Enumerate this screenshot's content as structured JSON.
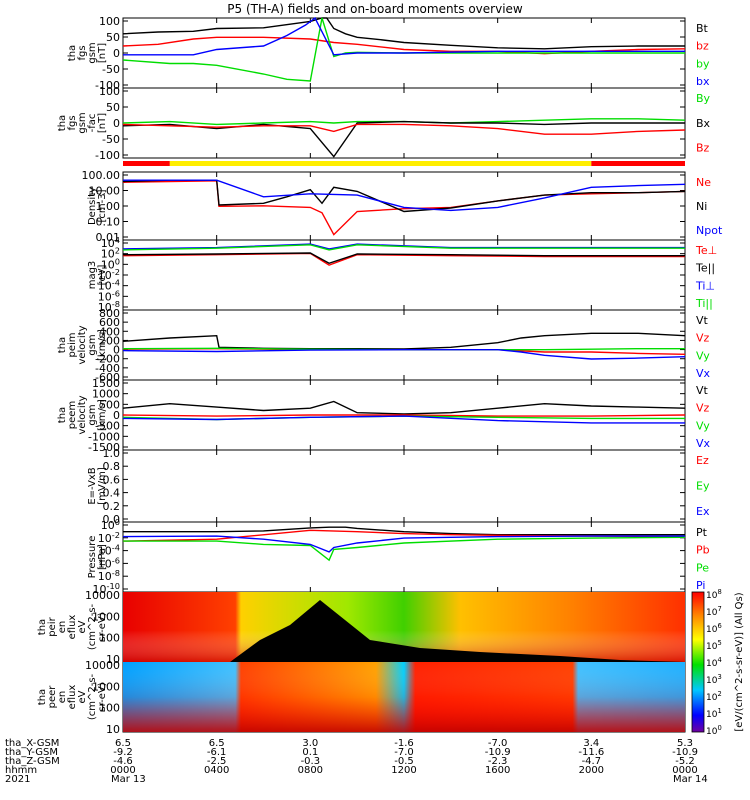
{
  "title": "P5 (TH-A) fields and on-board moments overview",
  "colors": {
    "black": "#000000",
    "red": "#ff0000",
    "green": "#00dd00",
    "blue": "#0000ff",
    "yellow": "#ffee00"
  },
  "chart_data": [
    {
      "type": "line",
      "panel": "fgs",
      "ylabel": [
        "tha",
        "fgs",
        "gsm",
        "[nT]"
      ],
      "ylim": [
        -100,
        100
      ],
      "yticks": [
        "100",
        "50",
        "0",
        "-50",
        "-100"
      ],
      "series": [
        {
          "name": "Bt",
          "color": "black",
          "x": [
            0,
            1.5,
            3,
            4,
            6,
            8,
            8.5,
            8.7,
            9,
            9.5,
            10,
            11,
            12,
            14,
            16,
            18,
            20,
            22,
            24
          ],
          "y": [
            55,
            60,
            62,
            70,
            72,
            90,
            100,
            100,
            70,
            55,
            45,
            38,
            30,
            22,
            15,
            12,
            18,
            20,
            20
          ]
        },
        {
          "name": "bz",
          "color": "red",
          "x": [
            0,
            1.5,
            3,
            4,
            6,
            8,
            9,
            10,
            12,
            14,
            16,
            18,
            20,
            22,
            24
          ],
          "y": [
            20,
            25,
            40,
            45,
            45,
            40,
            30,
            25,
            10,
            5,
            5,
            -2,
            5,
            10,
            12
          ]
        },
        {
          "name": "by",
          "color": "green",
          "x": [
            0,
            2,
            3,
            4,
            6,
            7,
            8,
            8.5,
            9,
            9.5,
            10,
            12,
            16,
            20,
            24
          ],
          "y": [
            -20,
            -30,
            -30,
            -35,
            -60,
            -75,
            -80,
            100,
            -10,
            0,
            2,
            0,
            0,
            0,
            0
          ]
        },
        {
          "name": "bx",
          "color": "blue",
          "x": [
            0,
            2,
            3,
            4,
            6,
            7,
            7.8,
            8.2,
            9,
            10,
            12,
            16,
            20,
            24
          ],
          "y": [
            -5,
            -5,
            -5,
            10,
            20,
            50,
            80,
            100,
            -5,
            0,
            0,
            5,
            5,
            5
          ]
        }
      ]
    },
    {
      "type": "line",
      "panel": "fgs-fac",
      "ylabel": [
        "tha",
        "fgs",
        "gsm",
        "-fac",
        "[nT]"
      ],
      "ylim": [
        -125,
        125
      ],
      "yticks": [
        "100",
        "50",
        "0",
        "-50",
        "-100"
      ],
      "series": [
        {
          "name": "By",
          "color": "green",
          "x": [
            0,
            2,
            4,
            6,
            8,
            9,
            10,
            12,
            14,
            16,
            18,
            20,
            22,
            24
          ],
          "y": [
            0,
            5,
            -5,
            0,
            5,
            0,
            5,
            5,
            0,
            5,
            10,
            15,
            15,
            10
          ]
        },
        {
          "name": "Bx",
          "color": "black",
          "x": [
            0,
            2,
            4,
            6,
            8,
            9,
            10,
            12,
            14,
            16,
            18,
            20,
            22,
            24
          ],
          "y": [
            -10,
            -5,
            -20,
            -5,
            -20,
            -120,
            0,
            5,
            0,
            0,
            -5,
            0,
            0,
            0
          ]
        },
        {
          "name": "Bz",
          "color": "red",
          "x": [
            0,
            2,
            4,
            6,
            8,
            9,
            10,
            12,
            14,
            16,
            18,
            20,
            22,
            24
          ],
          "y": [
            -5,
            -10,
            -15,
            -10,
            -10,
            -30,
            -5,
            -5,
            -10,
            -20,
            -40,
            -40,
            -30,
            -25
          ]
        }
      ]
    },
    {
      "type": "line",
      "panel": "density",
      "yscale": "log",
      "ylabel": [
        "Density",
        "[cm-3]"
      ],
      "ylim": [
        0.004,
        400
      ],
      "yticks": [
        "100.00",
        "10.00",
        "1.00",
        "0.10",
        "0.01"
      ],
      "series": [
        {
          "name": "Ne",
          "color": "red",
          "x": [
            0,
            2,
            4,
            4.1,
            6,
            8,
            8.5,
            9,
            10,
            12,
            14,
            16,
            18,
            20,
            22,
            24
          ],
          "y": [
            70,
            80,
            90,
            1.2,
            1.3,
            1,
            0.4,
            0.01,
            0.5,
            0.8,
            1,
            3,
            8,
            10,
            12,
            15
          ]
        },
        {
          "name": "Ni",
          "color": "black",
          "x": [
            0,
            2,
            4,
            4.1,
            6,
            7,
            8,
            8.5,
            9,
            10,
            12,
            14,
            16,
            18,
            20,
            22,
            24
          ],
          "y": [
            80,
            100,
            100,
            1.5,
            2,
            6,
            20,
            2,
            30,
            15,
            0.5,
            0.9,
            3,
            8,
            12,
            12,
            15
          ]
        },
        {
          "name": "Npot",
          "color": "blue",
          "x": [
            0,
            4,
            6,
            8,
            10,
            12,
            14,
            16,
            18,
            20,
            22,
            24
          ],
          "y": [
            100,
            100,
            6,
            10,
            8,
            1,
            0.6,
            1,
            5,
            30,
            40,
            50
          ]
        }
      ]
    },
    {
      "type": "line",
      "panel": "moments-temperature",
      "yscale": "log",
      "ylabel": [
        "mag3",
        "[eV]"
      ],
      "ylim": [
        1e-08,
        10000
      ],
      "yticks": [
        "10^4",
        "10^2",
        "10^0",
        "10^-2",
        "10^-4",
        "10^-6",
        "10^-8"
      ],
      "series": [
        {
          "name": "Te⊥",
          "color": "red",
          "x": [
            0,
            4,
            8,
            8.8,
            10,
            14,
            18,
            24
          ],
          "y": [
            20,
            30,
            50,
            0.5,
            30,
            20,
            15,
            15
          ]
        },
        {
          "name": "Te||",
          "color": "black",
          "x": [
            0,
            4,
            8,
            8.8,
            10,
            14,
            18,
            24
          ],
          "y": [
            30,
            40,
            60,
            1,
            40,
            30,
            20,
            20
          ]
        },
        {
          "name": "Ti⊥",
          "color": "blue",
          "x": [
            0,
            4,
            8,
            8.8,
            10,
            14,
            18,
            24
          ],
          "y": [
            300,
            500,
            2000,
            300,
            2000,
            500,
            500,
            500
          ]
        },
        {
          "name": "Ti||",
          "color": "green",
          "x": [
            0,
            4,
            8,
            8.8,
            10,
            14,
            18,
            24
          ],
          "y": [
            200,
            400,
            1500,
            200,
            1500,
            400,
            400,
            400
          ]
        }
      ]
    },
    {
      "type": "line",
      "panel": "peim-velocity",
      "ylabel": [
        "tha",
        "peim",
        "velocity",
        "gsm",
        "[km/s]"
      ],
      "ylim": [
        -650,
        850
      ],
      "yticks": [
        "800",
        "600",
        "400",
        "200",
        "0",
        "-200",
        "-400",
        "-600"
      ],
      "series": [
        {
          "name": "Vt",
          "color": "black",
          "x": [
            0,
            2,
            4,
            4.1,
            6,
            8,
            10,
            12,
            14,
            16,
            17,
            18,
            20,
            22,
            24
          ],
          "y": [
            180,
            250,
            300,
            50,
            30,
            20,
            20,
            15,
            50,
            150,
            250,
            300,
            350,
            350,
            300
          ]
        },
        {
          "name": "Vz",
          "color": "red",
          "x": [
            0,
            4,
            8,
            12,
            16,
            18,
            20,
            22,
            24
          ],
          "y": [
            10,
            20,
            0,
            0,
            0,
            -50,
            -50,
            -80,
            -100
          ]
        },
        {
          "name": "Vy",
          "color": "green",
          "x": [
            0,
            4,
            8,
            12,
            16,
            18,
            20,
            22,
            24
          ],
          "y": [
            20,
            30,
            10,
            0,
            0,
            0,
            10,
            20,
            20
          ]
        },
        {
          "name": "Vx",
          "color": "blue",
          "x": [
            0,
            4,
            8,
            12,
            16,
            17,
            18,
            20,
            22,
            24
          ],
          "y": [
            -20,
            -40,
            -10,
            0,
            0,
            -50,
            -120,
            -200,
            -180,
            -150
          ]
        }
      ]
    },
    {
      "type": "line",
      "panel": "peem-velocity",
      "ylabel": [
        "tha",
        "peem",
        "velocity",
        "gsm",
        "[km/s]"
      ],
      "ylim": [
        -1550,
        1550
      ],
      "yticks": [
        "1500",
        "1000",
        "500",
        "0",
        "-500",
        "-1000",
        "-1500"
      ],
      "series": [
        {
          "name": "Vt",
          "color": "black",
          "x": [
            0,
            2,
            4,
            6,
            8,
            9,
            10,
            12,
            14,
            16,
            18,
            20,
            22,
            24
          ],
          "y": [
            300,
            500,
            350,
            200,
            300,
            600,
            100,
            50,
            100,
            300,
            500,
            400,
            350,
            300
          ]
        },
        {
          "name": "Vz",
          "color": "red",
          "x": [
            0,
            4,
            8,
            12,
            16,
            20,
            24
          ],
          "y": [
            0,
            -50,
            0,
            0,
            -50,
            -50,
            0
          ]
        },
        {
          "name": "Vy",
          "color": "green",
          "x": [
            0,
            4,
            8,
            12,
            16,
            20,
            24
          ],
          "y": [
            -100,
            -200,
            -100,
            -50,
            -100,
            -150,
            -150
          ]
        },
        {
          "name": "Vx",
          "color": "blue",
          "x": [
            0,
            4,
            8,
            12,
            16,
            20,
            24
          ],
          "y": [
            -150,
            -200,
            -100,
            -50,
            -250,
            -350,
            -350
          ]
        }
      ]
    },
    {
      "type": "line",
      "panel": "electric-field",
      "ylabel": [
        "E=-VxB",
        "[mV/m]"
      ],
      "ylim": [
        -0.05,
        1.05
      ],
      "yticks": [
        "1.0",
        "0.8",
        "0.6",
        "0.4",
        "0.2",
        "0.0"
      ],
      "series": [
        {
          "name": "Ez",
          "color": "red",
          "x": [],
          "y": []
        },
        {
          "name": "Ey",
          "color": "green",
          "x": [],
          "y": []
        },
        {
          "name": "Ex",
          "color": "blue",
          "x": [],
          "y": []
        }
      ]
    },
    {
      "type": "line",
      "panel": "pressure",
      "yscale": "log",
      "ylabel": [
        "Pressure",
        "[nPa]"
      ],
      "ylim": [
        1e-10,
        10
      ],
      "yticks": [
        "10^0",
        "10^-2",
        "10^-4",
        "10^-6",
        "10^-8",
        "10^-10"
      ],
      "series": [
        {
          "name": "Pt",
          "color": "black",
          "x": [
            0,
            2,
            4,
            6,
            8,
            8.8,
            9.5,
            10,
            12,
            14,
            16,
            20,
            24
          ],
          "y": [
            0.3,
            0.3,
            0.3,
            0.4,
            1.2,
            1.5,
            1.5,
            1.0,
            0.3,
            0.15,
            0.1,
            0.1,
            0.1
          ]
        },
        {
          "name": "Pb",
          "color": "red",
          "x": [
            0,
            4,
            8,
            10,
            12,
            14,
            16,
            20,
            24
          ],
          "y": [
            0.01,
            0.02,
            0.5,
            0.3,
            0.15,
            0.1,
            0.08,
            0.06,
            0.05
          ]
        },
        {
          "name": "Pe",
          "color": "green",
          "x": [
            0,
            4,
            6,
            8,
            8.8,
            9,
            10,
            12,
            16,
            20,
            24
          ],
          "y": [
            0.01,
            0.01,
            0.003,
            0.002,
            1e-05,
            0.0005,
            0.001,
            0.005,
            0.02,
            0.03,
            0.04
          ]
        },
        {
          "name": "Pi",
          "color": "blue",
          "x": [
            0,
            4,
            6,
            8,
            8.8,
            9,
            10,
            12,
            16,
            20,
            24
          ],
          "y": [
            0.05,
            0.06,
            0.02,
            0.003,
            0.0002,
            0.001,
            0.005,
            0.03,
            0.05,
            0.06,
            0.06
          ]
        }
      ]
    },
    {
      "type": "heatmap",
      "panel": "peir-energy-flux",
      "ylabel": [
        "tha",
        "peir",
        "en",
        "eflux",
        "eV",
        "(cm^2-s-",
        "sr-eV)"
      ],
      "yticks": [
        "10000",
        "1000",
        "100",
        "10"
      ]
    },
    {
      "type": "heatmap",
      "panel": "peer-energy-flux",
      "ylabel": [
        "tha",
        "peer",
        "en",
        "eflux",
        "eV",
        "(cm^2-s-",
        "sr-eV)"
      ],
      "yticks": [
        "10000",
        "1000",
        "100",
        "10"
      ]
    }
  ],
  "colorbar": {
    "label": "[eV/(cm^2-s-sr-eV)] (All Qs)",
    "ticks": [
      "10^8",
      "10^7",
      "10^6",
      "10^5",
      "10^4",
      "10^3",
      "10^2",
      "10^1",
      "10^0"
    ]
  },
  "xaxis": {
    "rows": [
      {
        "label": "tha_X-GSM",
        "values": [
          "6.5",
          "6.5",
          "3.0",
          "-1.6",
          "-7.0",
          "3.4",
          "5.3"
        ]
      },
      {
        "label": "tha_Y-GSM",
        "values": [
          "-9.2",
          "-6.1",
          "0.1",
          "-7.0",
          "-10.9",
          "-11.6",
          "-10.9"
        ]
      },
      {
        "label": "tha_Z-GSM",
        "values": [
          "-4.6",
          "-2.5",
          "-0.3",
          "-0.5",
          "-2.3",
          "-4.7",
          "-5.2"
        ]
      },
      {
        "label": "hhmm",
        "values": [
          "0000",
          "0400",
          "0800",
          "1200",
          "1600",
          "2000",
          "0000"
        ]
      }
    ],
    "year": "2021",
    "dates": [
      "Mar 13",
      "Mar 14"
    ]
  }
}
